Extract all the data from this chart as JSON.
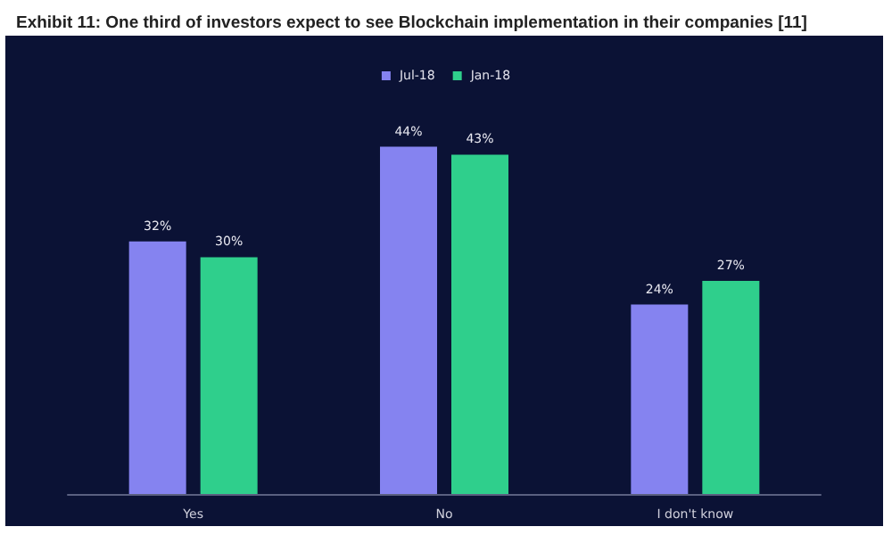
{
  "chart_data": {
    "type": "bar",
    "title": "Exhibit 11: One third of investors expect to see Blockchain implementation in their companies [11]",
    "categories": [
      "Yes",
      "No",
      "I don't know"
    ],
    "series": [
      {
        "name": "Jul-18",
        "color": "#8583f0",
        "values": [
          32,
          44,
          24
        ],
        "value_labels": [
          "32%",
          "44%",
          "24%"
        ]
      },
      {
        "name": "Jan-18",
        "color": "#2fcf8c",
        "values": [
          30,
          43,
          27
        ],
        "value_labels": [
          "30%",
          "43%",
          "27%"
        ]
      }
    ],
    "legend": "top"
  }
}
